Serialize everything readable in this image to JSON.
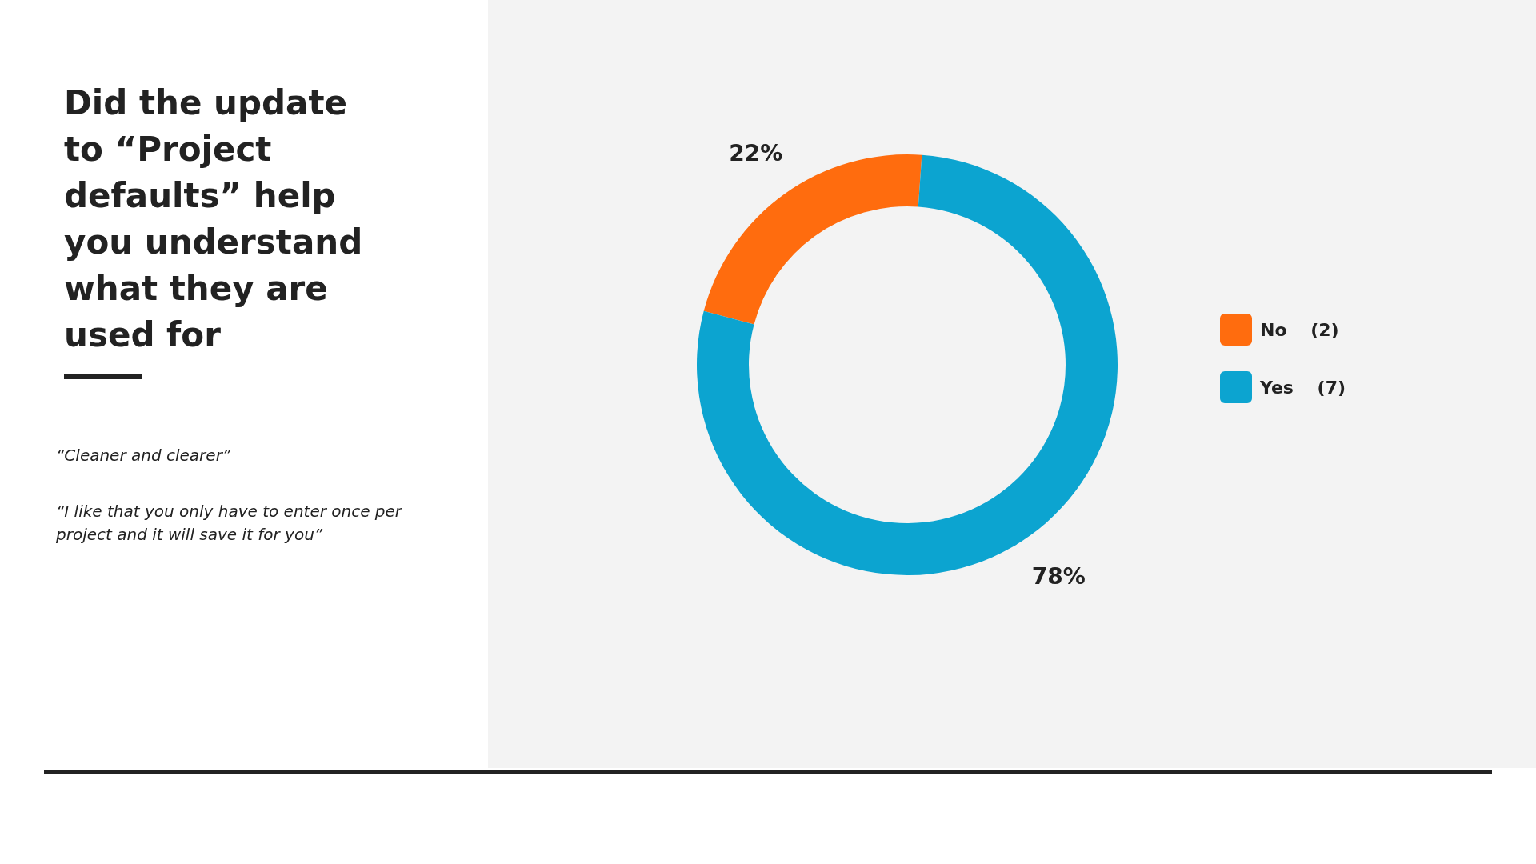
{
  "chart_data": {
    "type": "donut",
    "title": "Did the update to “Project defaults” help you understand what they are used for",
    "categories": [
      "No (2)",
      "Yes (7)"
    ],
    "values": [
      22,
      78
    ],
    "value_labels": [
      "22%",
      "78%"
    ],
    "colors": [
      "#ff6c0e",
      "#0ca4d0"
    ],
    "legend": "right",
    "annotations": [
      "“Cleaner and clearer”",
      "“I like that you only have to enter once per project and it will save it for you”"
    ]
  }
}
